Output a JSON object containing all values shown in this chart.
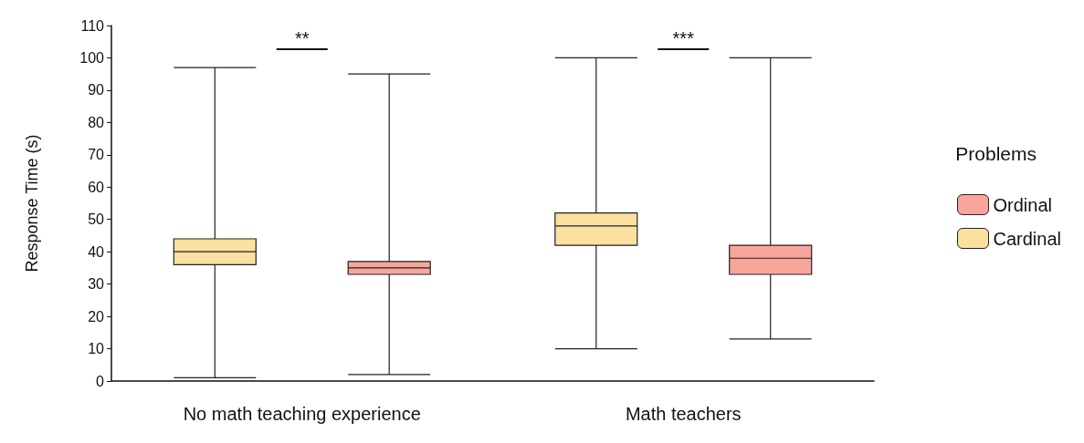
{
  "chart_data": {
    "type": "box",
    "ylabel": "Response Time (s)",
    "legend_title": "Problems",
    "categories": [
      "No math teaching experience",
      "Math teachers"
    ],
    "series": [
      {
        "name": "Cardinal",
        "color": "#fbe0a0",
        "boxes": [
          {
            "low": 1,
            "q1": 36,
            "median": 40,
            "q3": 44,
            "high": 97
          },
          {
            "low": 10,
            "q1": 42,
            "median": 48,
            "q3": 52,
            "high": 100
          }
        ]
      },
      {
        "name": "Ordinal",
        "color": "#f8a59c",
        "boxes": [
          {
            "low": 2,
            "q1": 33,
            "median": 35,
            "q3": 37,
            "high": 95
          },
          {
            "low": 13,
            "q1": 33,
            "median": 38,
            "q3": 42,
            "high": 100
          }
        ]
      }
    ],
    "ylim": [
      0,
      110
    ],
    "yticks": [
      0,
      10,
      20,
      30,
      40,
      50,
      60,
      70,
      80,
      90,
      100,
      110
    ],
    "grid": false,
    "legend": "right",
    "annotations": [
      "**",
      "***"
    ]
  }
}
